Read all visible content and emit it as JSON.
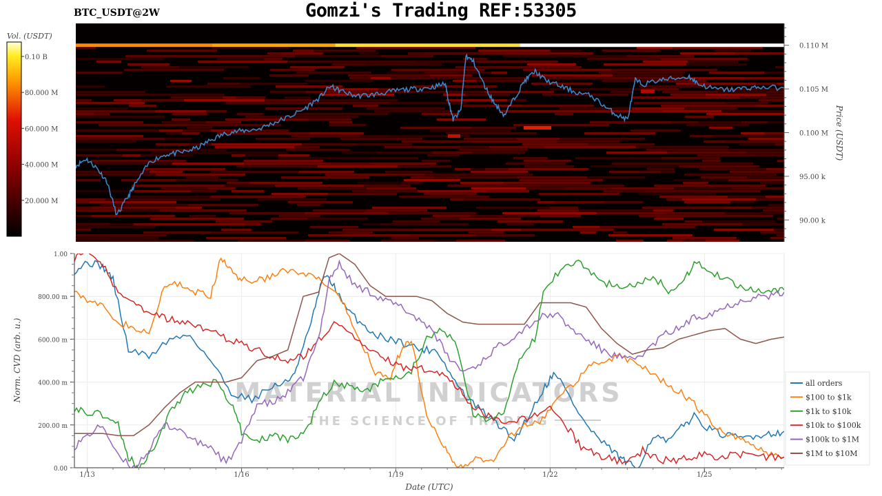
{
  "header": {
    "title": "Gomzi's Trading REF:53305",
    "symbol": "BTC_USDT@2W"
  },
  "colorbar": {
    "label": "Vol. (USDT)",
    "ticks": [
      "0.10 B",
      "80.000 M",
      "60.000 M",
      "40.000 M",
      "20.000 M"
    ],
    "tick_values": [
      100,
      80,
      60,
      40,
      20
    ],
    "range": [
      0,
      108
    ]
  },
  "watermark": {
    "line1": "MATERIAL INDICATORS",
    "line2": "THE SCIENCE OF TRADING"
  },
  "colors": {
    "price_line": "#3a86c8",
    "all_orders": "#1f77b4",
    "r100_1k": "#ff7f0e",
    "r1k_10k": "#2ca02c",
    "r10k_100k": "#d62728",
    "r100k_1m": "#9467bd",
    "r1m_10m": "#8c564b"
  },
  "chart_data": [
    {
      "type": "heatmap",
      "title": "",
      "ylabel": "Price (USDT)",
      "y_ticks": [
        "0.110 M",
        "0.105 M",
        "0.100 M",
        "95.00 k",
        "90.00 k"
      ],
      "y_tick_values": [
        110000,
        105000,
        100000,
        95000,
        90000
      ],
      "ylim": [
        87500,
        112500
      ],
      "xlim": [
        12.75,
        26.55
      ],
      "price_series": {
        "name": "Price",
        "x": [
          12.75,
          12.95,
          13.15,
          13.35,
          13.55,
          13.75,
          13.9,
          14.2,
          14.5,
          14.8,
          15.1,
          15.4,
          15.7,
          16.0,
          16.3,
          16.6,
          16.9,
          17.2,
          17.5,
          17.7,
          17.9,
          18.2,
          18.5,
          18.8,
          19.1,
          19.4,
          19.7,
          19.95,
          20.0,
          20.1,
          20.25,
          20.35,
          20.5,
          20.7,
          20.9,
          21.1,
          21.3,
          21.5,
          21.7,
          21.9,
          22.2,
          22.5,
          22.8,
          23.1,
          23.3,
          23.5,
          23.65,
          23.8,
          24.1,
          24.4,
          24.7,
          24.9,
          25.2,
          25.5,
          25.8,
          26.1,
          26.55
        ],
        "y": [
          96200,
          97000,
          96000,
          94500,
          90500,
          92500,
          94000,
          96700,
          97500,
          97700,
          98200,
          99200,
          100000,
          100200,
          100400,
          101100,
          101800,
          102700,
          104000,
          105300,
          104800,
          104200,
          104300,
          104600,
          104900,
          105000,
          105200,
          105600,
          104000,
          101500,
          102500,
          108800,
          108100,
          105500,
          103400,
          102000,
          104000,
          106000,
          107000,
          106000,
          105300,
          104600,
          104200,
          102800,
          102000,
          101500,
          106000,
          105500,
          106000,
          106200,
          106400,
          105500,
          105000,
          104900,
          105100,
          105200,
          105100
        ]
      },
      "bright_band": {
        "price": 110000,
        "segments": [
          {
            "x_start": 12.75,
            "x_end": 15.4,
            "level": 80
          },
          {
            "x_start": 15.4,
            "x_end": 17.8,
            "level": 88
          },
          {
            "x_start": 17.8,
            "x_end": 21.4,
            "level": 100
          },
          {
            "x_start": 21.4,
            "x_end": 26.55,
            "level": 108
          }
        ]
      }
    },
    {
      "type": "line",
      "title": "",
      "xlabel": "Date (UTC)",
      "ylabel": "Norm. CVD (arb. u.)",
      "x_ticks": [
        "1/13",
        "1/16",
        "1/19",
        "1/22",
        "1/25"
      ],
      "x_tick_values": [
        13,
        16,
        19,
        22,
        25
      ],
      "y_ticks": [
        "1.00",
        "800.00 m",
        "600.00 m",
        "400.00 m",
        "200.00 m",
        "0.00"
      ],
      "y_tick_values": [
        1,
        0.8,
        0.6,
        0.4,
        0.2,
        0
      ],
      "xlim": [
        12.75,
        26.55
      ],
      "ylim": [
        0,
        1
      ],
      "grid": true,
      "legend": "right",
      "series": [
        {
          "name": "all orders",
          "color_key": "all_orders",
          "x": [
            12.75,
            13.0,
            13.3,
            13.5,
            13.8,
            14.2,
            14.6,
            15.0,
            15.4,
            15.8,
            16.2,
            16.6,
            16.9,
            17.1,
            17.4,
            17.6,
            17.8,
            18.0,
            18.3,
            18.6,
            18.9,
            19.2,
            19.5,
            19.8,
            20.1,
            20.4,
            20.7,
            21.0,
            21.3,
            21.6,
            21.9,
            22.1,
            22.4,
            22.7,
            23.0,
            23.3,
            23.5,
            23.7,
            24.0,
            24.3,
            24.6,
            24.8,
            25.1,
            25.4,
            25.7,
            26.0,
            26.3,
            26.55
          ],
          "y": [
            0.92,
            0.96,
            0.94,
            0.88,
            0.55,
            0.52,
            0.6,
            0.62,
            0.5,
            0.35,
            0.32,
            0.38,
            0.4,
            0.48,
            0.72,
            0.9,
            0.85,
            0.75,
            0.68,
            0.62,
            0.6,
            0.58,
            0.55,
            0.55,
            0.42,
            0.32,
            0.26,
            0.2,
            0.13,
            0.25,
            0.38,
            0.45,
            0.32,
            0.2,
            0.12,
            0.06,
            0.02,
            0.0,
            0.15,
            0.12,
            0.2,
            0.24,
            0.18,
            0.15,
            0.14,
            0.15,
            0.16,
            0.17
          ]
        },
        {
          "name": "$100 to $1k",
          "color_key": "r100_1k",
          "x": [
            12.75,
            13.0,
            13.3,
            13.6,
            13.9,
            14.2,
            14.5,
            14.8,
            15.1,
            15.4,
            15.6,
            15.8,
            16.0,
            16.3,
            16.6,
            16.9,
            17.2,
            17.5,
            17.8,
            18.0,
            18.3,
            18.6,
            18.9,
            19.1,
            19.3,
            19.6,
            19.9,
            20.1,
            20.3,
            20.6,
            20.9,
            21.2,
            21.5,
            21.8,
            22.1,
            22.4,
            22.7,
            23.0,
            23.3,
            23.6,
            23.9,
            24.2,
            24.5,
            24.8,
            25.1,
            25.4,
            25.7,
            26.0,
            26.3,
            26.55
          ],
          "y": [
            0.84,
            0.78,
            0.75,
            0.68,
            0.65,
            0.62,
            0.85,
            0.86,
            0.82,
            0.8,
            0.98,
            0.92,
            0.88,
            0.87,
            0.9,
            0.92,
            0.9,
            0.88,
            0.82,
            0.75,
            0.6,
            0.45,
            0.42,
            0.55,
            0.6,
            0.25,
            0.12,
            0.02,
            0.0,
            0.05,
            0.02,
            0.15,
            0.2,
            0.22,
            0.3,
            0.38,
            0.46,
            0.5,
            0.52,
            0.5,
            0.46,
            0.4,
            0.36,
            0.3,
            0.22,
            0.15,
            0.14,
            0.1,
            0.06,
            0.05
          ]
        },
        {
          "name": "$1k to $10k",
          "color_key": "r1k_10k",
          "x": [
            12.75,
            13.0,
            13.3,
            13.6,
            13.8,
            14.0,
            14.3,
            14.6,
            14.9,
            15.2,
            15.5,
            15.8,
            16.0,
            16.3,
            16.6,
            16.9,
            17.2,
            17.5,
            17.8,
            18.1,
            18.4,
            18.7,
            19.0,
            19.3,
            19.6,
            19.9,
            20.2,
            20.5,
            20.8,
            21.1,
            21.4,
            21.7,
            21.9,
            22.2,
            22.5,
            22.8,
            23.1,
            23.4,
            23.7,
            24.0,
            24.3,
            24.6,
            24.8,
            25.1,
            25.4,
            25.7,
            26.0,
            26.3,
            26.55
          ],
          "y": [
            0.28,
            0.26,
            0.25,
            0.2,
            0.05,
            0.0,
            0.1,
            0.25,
            0.35,
            0.38,
            0.4,
            0.3,
            0.17,
            0.13,
            0.15,
            0.13,
            0.15,
            0.3,
            0.4,
            0.38,
            0.35,
            0.4,
            0.42,
            0.45,
            0.6,
            0.65,
            0.56,
            0.25,
            0.22,
            0.25,
            0.5,
            0.6,
            0.85,
            0.92,
            0.97,
            0.9,
            0.86,
            0.85,
            0.85,
            0.9,
            0.82,
            0.86,
            0.97,
            0.92,
            0.88,
            0.84,
            0.82,
            0.82,
            0.83
          ]
        },
        {
          "name": "$10k to $100k",
          "color_key": "r10k_100k",
          "x": [
            12.75,
            13.0,
            13.3,
            13.6,
            13.9,
            14.2,
            14.5,
            14.8,
            15.1,
            15.4,
            15.7,
            16.0,
            16.3,
            16.6,
            16.9,
            17.2,
            17.5,
            17.8,
            18.1,
            18.4,
            18.7,
            19.0,
            19.3,
            19.6,
            19.9,
            20.2,
            20.5,
            20.8,
            21.1,
            21.4,
            21.7,
            22.0,
            22.3,
            22.6,
            22.9,
            23.2,
            23.5,
            23.8,
            24.1,
            24.4,
            24.7,
            25.0,
            25.3,
            25.6,
            25.9,
            26.2,
            26.55
          ],
          "y": [
            0.98,
            1.0,
            0.95,
            0.82,
            0.78,
            0.72,
            0.7,
            0.68,
            0.66,
            0.64,
            0.6,
            0.58,
            0.55,
            0.52,
            0.5,
            0.52,
            0.6,
            0.68,
            0.62,
            0.58,
            0.52,
            0.48,
            0.46,
            0.46,
            0.44,
            0.38,
            0.28,
            0.24,
            0.2,
            0.22,
            0.25,
            0.28,
            0.2,
            0.1,
            0.06,
            0.04,
            0.02,
            0.08,
            0.04,
            0.03,
            0.05,
            0.06,
            0.05,
            0.06,
            0.06,
            0.05,
            0.05
          ]
        },
        {
          "name": "$100k to $1M",
          "color_key": "r100k_1m",
          "x": [
            12.75,
            13.0,
            13.3,
            13.6,
            13.9,
            14.2,
            14.5,
            14.8,
            15.1,
            15.4,
            15.7,
            16.0,
            16.3,
            16.6,
            16.9,
            17.2,
            17.5,
            17.7,
            17.9,
            18.2,
            18.5,
            18.8,
            19.1,
            19.4,
            19.7,
            20.0,
            20.3,
            20.6,
            20.9,
            21.2,
            21.5,
            21.8,
            22.1,
            22.4,
            22.7,
            23.0,
            23.3,
            23.6,
            23.9,
            24.2,
            24.5,
            24.8,
            25.1,
            25.4,
            25.7,
            26.0,
            26.3,
            26.55
          ],
          "y": [
            0.1,
            0.15,
            0.2,
            0.05,
            0.0,
            0.08,
            0.2,
            0.18,
            0.12,
            0.1,
            0.02,
            0.12,
            0.3,
            0.3,
            0.35,
            0.42,
            0.6,
            0.88,
            0.95,
            0.85,
            0.82,
            0.78,
            0.75,
            0.7,
            0.65,
            0.52,
            0.45,
            0.48,
            0.55,
            0.6,
            0.65,
            0.7,
            0.72,
            0.65,
            0.6,
            0.55,
            0.52,
            0.5,
            0.55,
            0.62,
            0.65,
            0.7,
            0.72,
            0.75,
            0.78,
            0.8,
            0.8,
            0.82
          ]
        },
        {
          "name": "$1M to $10M",
          "color_key": "r1m_10m",
          "x": [
            12.75,
            13.0,
            13.3,
            13.6,
            13.9,
            14.2,
            14.5,
            14.8,
            15.1,
            15.4,
            15.7,
            16.0,
            16.3,
            16.6,
            16.9,
            17.2,
            17.5,
            17.7,
            17.9,
            18.2,
            18.5,
            18.8,
            19.1,
            19.4,
            19.7,
            20.0,
            20.3,
            20.6,
            20.9,
            21.2,
            21.5,
            21.8,
            22.1,
            22.4,
            22.7,
            23.0,
            23.3,
            23.6,
            23.9,
            24.2,
            24.5,
            24.8,
            25.1,
            25.4,
            25.7,
            26.0,
            26.3,
            26.55
          ],
          "y": [
            0.16,
            0.16,
            0.16,
            0.15,
            0.15,
            0.2,
            0.28,
            0.35,
            0.4,
            0.4,
            0.4,
            0.42,
            0.5,
            0.52,
            0.55,
            0.8,
            0.82,
            0.98,
            1.0,
            0.95,
            0.85,
            0.8,
            0.8,
            0.8,
            0.78,
            0.72,
            0.68,
            0.67,
            0.67,
            0.67,
            0.67,
            0.77,
            0.77,
            0.77,
            0.75,
            0.65,
            0.58,
            0.53,
            0.55,
            0.56,
            0.6,
            0.62,
            0.64,
            0.65,
            0.6,
            0.58,
            0.6,
            0.61
          ]
        }
      ]
    }
  ]
}
